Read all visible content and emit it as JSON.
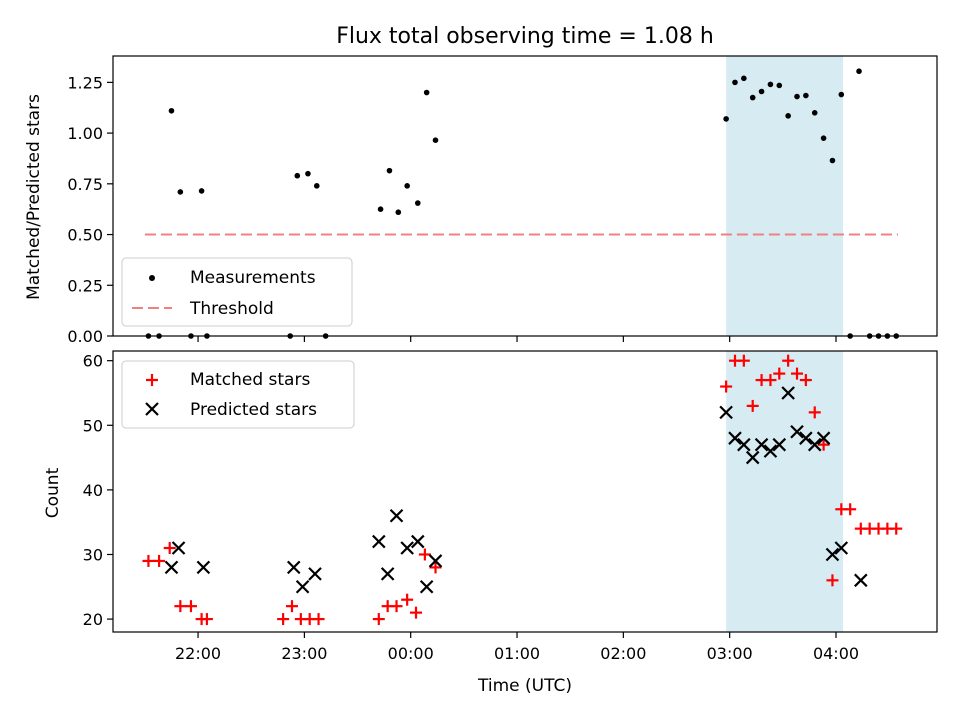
{
  "chart_data": [
    {
      "type": "scatter",
      "title": "Flux total observing time = 1.08 h",
      "xlabel": "",
      "ylabel": "Matched/Predicted stars",
      "xlim": [
        "21:12",
        "04:57"
      ],
      "ylim": [
        0,
        1.38
      ],
      "yticks": [
        "0.00",
        "0.25",
        "0.50",
        "0.75",
        "1.00",
        "1.25"
      ],
      "highlight_span": [
        "02:58",
        "04:04"
      ],
      "highlight_color": "#add8e6",
      "threshold": {
        "value": 0.5,
        "x_range": [
          "21:30",
          "04:35"
        ],
        "color": "#f08080"
      },
      "legend": {
        "position": "lower-left",
        "entries": [
          "Measurements",
          "Threshold"
        ]
      },
      "series": [
        {
          "name": "Measurements",
          "color": "#000000",
          "points": [
            [
              "21:32",
              0.0
            ],
            [
              "21:38",
              0.0
            ],
            [
              "21:45",
              1.11
            ],
            [
              "21:50",
              0.71
            ],
            [
              "21:56",
              0.0
            ],
            [
              "22:02",
              0.715
            ],
            [
              "22:05",
              0.0
            ],
            [
              "22:52",
              0.0
            ],
            [
              "22:56",
              0.79
            ],
            [
              "23:02",
              0.8
            ],
            [
              "23:07",
              0.74
            ],
            [
              "23:12",
              0.0
            ],
            [
              "23:43",
              0.625
            ],
            [
              "23:48",
              0.815
            ],
            [
              "23:53",
              0.61
            ],
            [
              "23:58",
              0.74
            ],
            [
              "00:04",
              0.655
            ],
            [
              "00:09",
              1.2
            ],
            [
              "00:14",
              0.965
            ],
            [
              "02:58",
              1.07
            ],
            [
              "03:03",
              1.25
            ],
            [
              "03:08",
              1.27
            ],
            [
              "03:13",
              1.175
            ],
            [
              "03:18",
              1.205
            ],
            [
              "03:23",
              1.24
            ],
            [
              "03:28",
              1.235
            ],
            [
              "03:33",
              1.085
            ],
            [
              "03:38",
              1.18
            ],
            [
              "03:43",
              1.185
            ],
            [
              "03:48",
              1.1
            ],
            [
              "03:53",
              0.975
            ],
            [
              "03:58",
              0.865
            ],
            [
              "04:03",
              1.19
            ],
            [
              "04:08",
              0.0
            ],
            [
              "04:13",
              1.305
            ],
            [
              "04:19",
              0.0
            ],
            [
              "04:24",
              0.0
            ],
            [
              "04:29",
              0.0
            ],
            [
              "04:34",
              0.0
            ]
          ]
        }
      ]
    },
    {
      "type": "scatter",
      "title": "",
      "xlabel": "Time (UTC)",
      "ylabel": "Count",
      "xlim": [
        "21:12",
        "04:57"
      ],
      "ylim": [
        18,
        61.5
      ],
      "yticks": [
        "20",
        "30",
        "40",
        "50",
        "60"
      ],
      "xticks": [
        "22:00",
        "23:00",
        "00:00",
        "01:00",
        "02:00",
        "03:00",
        "04:00"
      ],
      "highlight_span": [
        "02:58",
        "04:04"
      ],
      "highlight_color": "#add8e6",
      "legend": {
        "position": "top-left",
        "entries": [
          "Matched stars",
          "Predicted stars"
        ]
      },
      "series": [
        {
          "name": "Matched stars",
          "marker": "plus",
          "color": "#ff0000",
          "points": [
            [
              "21:32",
              29
            ],
            [
              "21:38",
              29
            ],
            [
              "21:44",
              31
            ],
            [
              "21:50",
              22
            ],
            [
              "21:56",
              22
            ],
            [
              "22:02",
              20
            ],
            [
              "22:05",
              20
            ],
            [
              "22:48",
              20
            ],
            [
              "22:53",
              22
            ],
            [
              "22:58",
              20
            ],
            [
              "23:03",
              20
            ],
            [
              "23:08",
              20
            ],
            [
              "23:42",
              20
            ],
            [
              "23:47",
              22
            ],
            [
              "23:52",
              22
            ],
            [
              "23:58",
              23
            ],
            [
              "00:03",
              21
            ],
            [
              "00:08",
              30
            ],
            [
              "00:14",
              28
            ],
            [
              "02:58",
              56
            ],
            [
              "03:03",
              60
            ],
            [
              "03:08",
              60
            ],
            [
              "03:13",
              53
            ],
            [
              "03:18",
              57
            ],
            [
              "03:23",
              57
            ],
            [
              "03:28",
              58
            ],
            [
              "03:33",
              60
            ],
            [
              "03:38",
              58
            ],
            [
              "03:43",
              57
            ],
            [
              "03:48",
              52
            ],
            [
              "03:53",
              47
            ],
            [
              "03:58",
              26
            ],
            [
              "04:03",
              37
            ],
            [
              "04:08",
              37
            ],
            [
              "04:14",
              34
            ],
            [
              "04:19",
              34
            ],
            [
              "04:24",
              34
            ],
            [
              "04:29",
              34
            ],
            [
              "04:34",
              34
            ]
          ]
        },
        {
          "name": "Predicted stars",
          "marker": "x",
          "color": "#000000",
          "points": [
            [
              "21:45",
              28
            ],
            [
              "21:49",
              31
            ],
            [
              "22:03",
              28
            ],
            [
              "22:54",
              28
            ],
            [
              "22:59",
              25
            ],
            [
              "23:06",
              27
            ],
            [
              "23:42",
              32
            ],
            [
              "23:47",
              27
            ],
            [
              "23:52",
              36
            ],
            [
              "23:58",
              31
            ],
            [
              "00:04",
              32
            ],
            [
              "00:09",
              25
            ],
            [
              "00:14",
              29
            ],
            [
              "02:58",
              52
            ],
            [
              "03:03",
              48
            ],
            [
              "03:08",
              47
            ],
            [
              "03:13",
              45
            ],
            [
              "03:18",
              47
            ],
            [
              "03:23",
              46
            ],
            [
              "03:28",
              47
            ],
            [
              "03:33",
              55
            ],
            [
              "03:38",
              49
            ],
            [
              "03:43",
              48
            ],
            [
              "03:48",
              47
            ],
            [
              "03:53",
              48
            ],
            [
              "03:58",
              30
            ],
            [
              "04:03",
              31
            ],
            [
              "04:14",
              26
            ]
          ]
        }
      ]
    }
  ]
}
